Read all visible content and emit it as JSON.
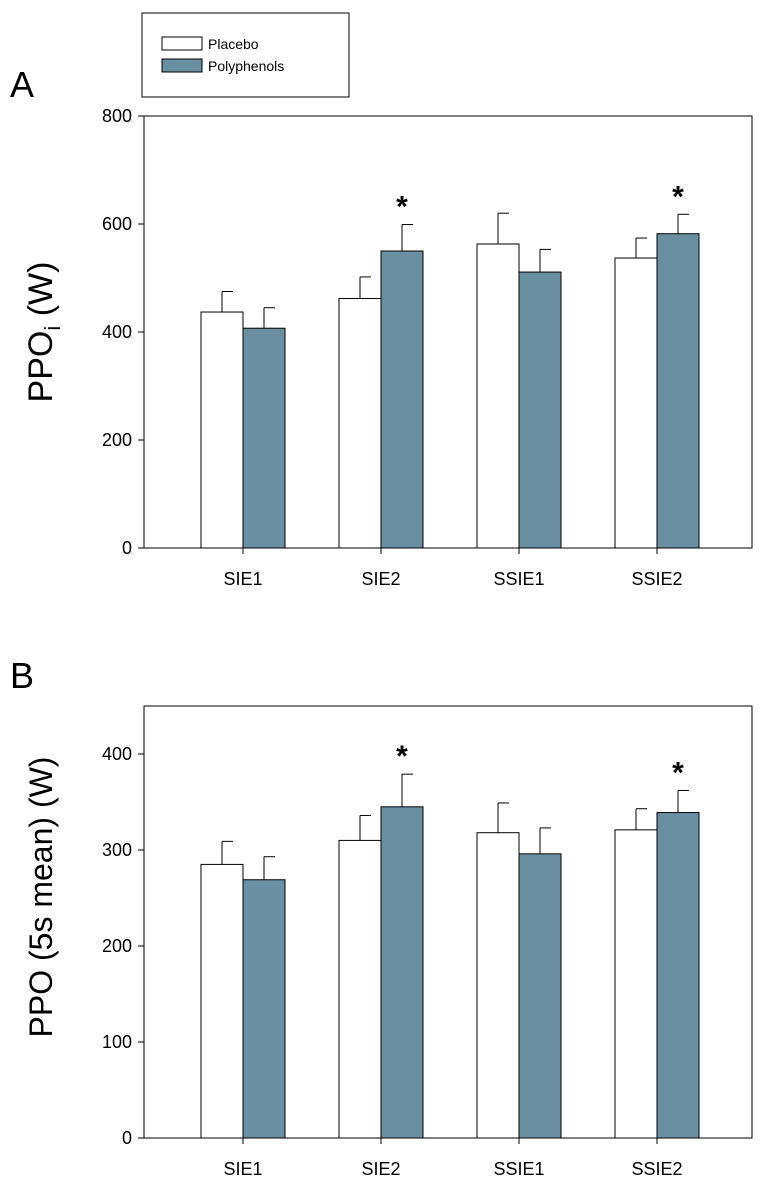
{
  "legend": {
    "entries": [
      {
        "label": "Placebo",
        "color": "#ffffff"
      },
      {
        "label": "Polyphenols",
        "color": "#6a8fa1"
      }
    ]
  },
  "colors": {
    "placebo": "#ffffff",
    "polyphenols": "#6a8fa1",
    "axis": "#000000"
  },
  "chart_data": [
    {
      "type": "bar",
      "panel_label": "A",
      "ylabel_main": "PPO",
      "ylabel_sub": "i",
      "ylabel_unit": " (W)",
      "categories": [
        "SIE1",
        "SIE2",
        "SSIE1",
        "SSIE2"
      ],
      "ylim": [
        0,
        800
      ],
      "yticks": [
        0,
        200,
        400,
        600,
        800
      ],
      "series": [
        {
          "name": "Placebo",
          "values": [
            437,
            462,
            563,
            537
          ],
          "errors": [
            38,
            40,
            57,
            37
          ]
        },
        {
          "name": "Polyphenols",
          "values": [
            407,
            550,
            511,
            582
          ],
          "errors": [
            38,
            49,
            42,
            36
          ]
        }
      ],
      "significance": [
        {
          "category": "SIE2",
          "series": "Polyphenols",
          "marker": "*"
        },
        {
          "category": "SSIE2",
          "series": "Polyphenols",
          "marker": "*"
        }
      ]
    },
    {
      "type": "bar",
      "panel_label": "B",
      "ylabel": "PPO (5s mean) (W)",
      "categories": [
        "SIE1",
        "SIE2",
        "SSIE1",
        "SSIE2"
      ],
      "ylim": [
        0,
        450
      ],
      "yticks": [
        0,
        100,
        200,
        300,
        400
      ],
      "series": [
        {
          "name": "Placebo",
          "values": [
            285,
            310,
            318,
            321
          ],
          "errors": [
            24,
            26,
            31,
            22
          ]
        },
        {
          "name": "Polyphenols",
          "values": [
            269,
            345,
            296,
            339
          ],
          "errors": [
            24,
            34,
            27,
            23
          ]
        }
      ],
      "significance": [
        {
          "category": "SIE2",
          "series": "Polyphenols",
          "marker": "*"
        },
        {
          "category": "SSIE2",
          "series": "Polyphenols",
          "marker": "*"
        }
      ]
    }
  ]
}
